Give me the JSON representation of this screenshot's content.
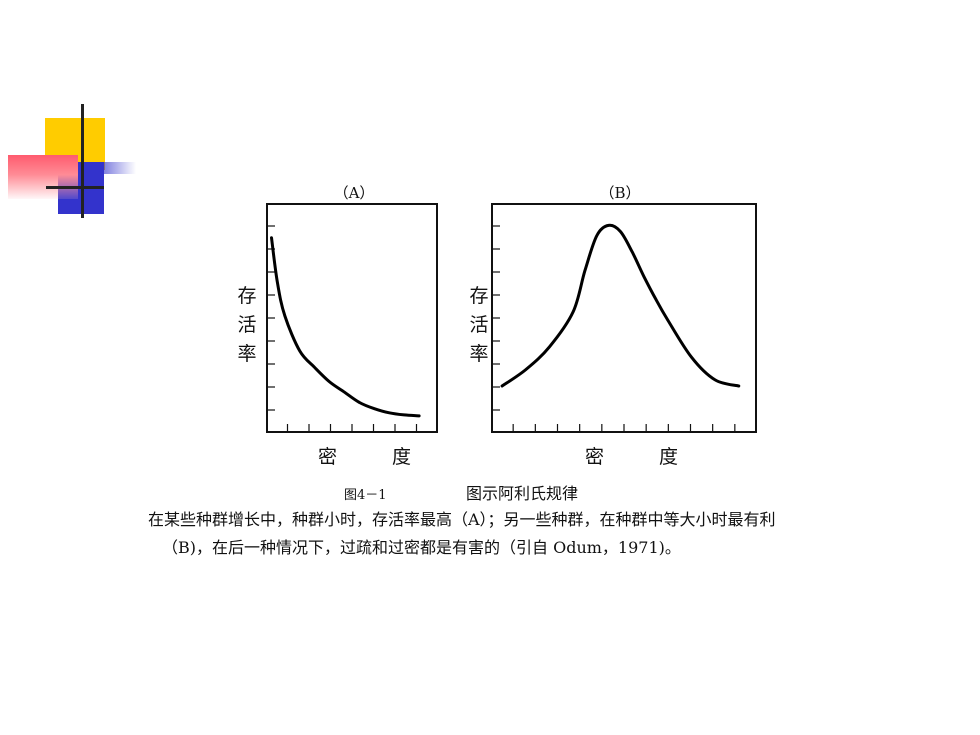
{
  "chart_data": [
    {
      "type": "line",
      "title": "（A）",
      "ylabel": "存活率",
      "xlabel": "密　度",
      "x": [
        1,
        5,
        10,
        20,
        30,
        40,
        50,
        60,
        70,
        80,
        90,
        100
      ],
      "y": [
        88,
        66,
        50,
        33,
        25,
        18,
        13,
        8,
        5,
        3,
        2,
        1.5
      ]
    },
    {
      "type": "line",
      "title": "（B）",
      "ylabel": "存活率",
      "xlabel": "密　度",
      "x": [
        0,
        10,
        20,
        30,
        35,
        40,
        45,
        50,
        55,
        60,
        65,
        70,
        80,
        90,
        100
      ],
      "y": [
        16,
        24,
        35,
        52,
        72,
        89,
        94,
        91,
        81,
        69,
        58,
        48,
        30,
        19,
        16
      ]
    }
  ],
  "figure": {
    "number": "图4－1",
    "title": "图示阿利氏规律"
  },
  "caption": {
    "line1": "在某些种群增长中，种群小时，存活率最高（A）；另一些种群，在种群中等大小时最有利",
    "line2": "（B)，在后一种情况下，过疏和过密都是有害的（引自 Odum，1971)。"
  },
  "ylabel_chars": [
    "存",
    "活",
    "率"
  ]
}
